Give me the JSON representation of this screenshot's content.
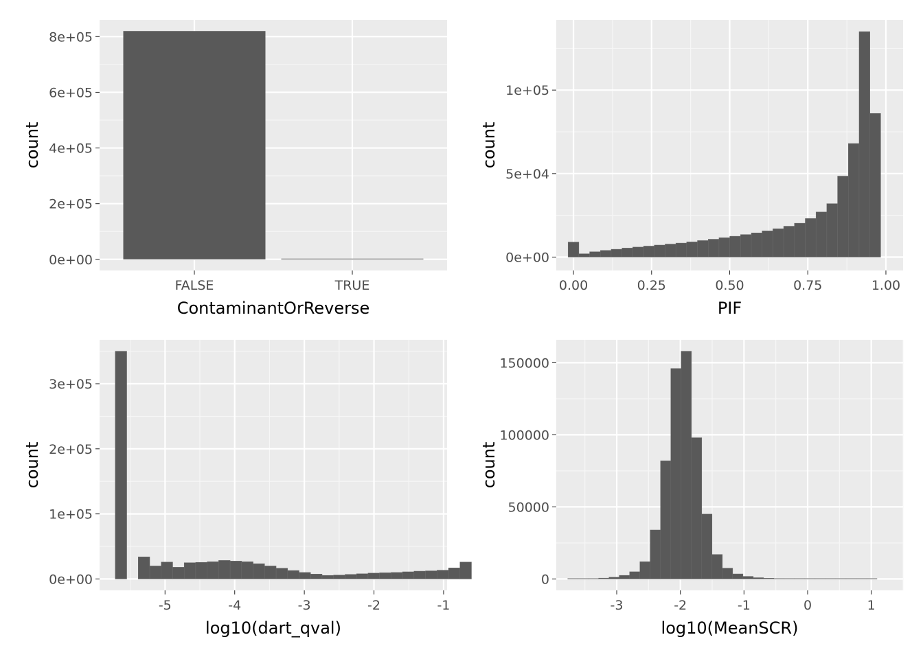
{
  "chart_data": [
    {
      "type": "bar",
      "xlabel": "ContaminantOrReverse",
      "ylabel": "count",
      "categories": [
        "FALSE",
        "TRUE"
      ],
      "values": [
        820000,
        1500
      ],
      "ylim": [
        -40000,
        860000
      ],
      "yticks": [
        0,
        200000,
        400000,
        600000,
        800000
      ],
      "ytick_labels": [
        "0e+00",
        "2e+05",
        "4e+05",
        "6e+05",
        "8e+05"
      ],
      "grid": true
    },
    {
      "type": "bar",
      "subtype": "histogram",
      "xlabel": "PIF",
      "ylabel": "count",
      "bins": {
        "start": -0.0172,
        "width": 0.0345
      },
      "values": [
        9000,
        2000,
        3200,
        4000,
        4700,
        5400,
        6000,
        6600,
        7200,
        7800,
        8400,
        9100,
        9900,
        10700,
        11600,
        12500,
        13500,
        14500,
        15700,
        17000,
        18500,
        20300,
        23100,
        27000,
        32000,
        48500,
        68000,
        135000,
        86000
      ],
      "xlim": [
        -0.055,
        1.055
      ],
      "ylim": [
        -8000,
        142000
      ],
      "xticks": [
        0,
        0.25,
        0.5,
        0.75,
        1
      ],
      "xtick_labels": [
        "0.00",
        "0.25",
        "0.50",
        "0.75",
        "1.00"
      ],
      "yticks": [
        0,
        50000,
        100000
      ],
      "ytick_labels": [
        "0e+00",
        "5e+04",
        "1e+05"
      ],
      "grid": true
    },
    {
      "type": "bar",
      "subtype": "histogram",
      "xlabel": "log10(dart_qval)",
      "ylabel": "count",
      "bins": {
        "start": -5.715,
        "width": 0.165
      },
      "values": [
        350000,
        0,
        34000,
        20000,
        26000,
        18000,
        25000,
        25500,
        26500,
        28500,
        27500,
        26500,
        23500,
        20000,
        16500,
        13000,
        10000,
        7500,
        5500,
        6000,
        7000,
        8000,
        9000,
        9500,
        10000,
        11000,
        12000,
        12500,
        13500,
        17000,
        26000
      ],
      "xlim": [
        -5.94,
        -0.95
      ],
      "ylim": [
        -17500,
        367500
      ],
      "xticks": [
        -5,
        -4,
        -3,
        -2,
        -1
      ],
      "xtick_labels": [
        "-5",
        "-4",
        "-3",
        "-2",
        "-1"
      ],
      "yticks": [
        0,
        100000,
        200000,
        300000
      ],
      "ytick_labels": [
        "0e+00",
        "1e+05",
        "2e+05",
        "3e+05"
      ],
      "grid": true
    },
    {
      "type": "bar",
      "subtype": "histogram",
      "xlabel": "log10(MeanSCR)",
      "ylabel": "count",
      "bins": {
        "start": -3.77,
        "width": 0.162
      },
      "values": [
        100,
        200,
        300,
        600,
        1200,
        2500,
        5000,
        12000,
        34000,
        82000,
        146000,
        158000,
        98000,
        45000,
        17000,
        7500,
        3500,
        1800,
        900,
        500,
        300,
        200,
        100,
        50,
        50,
        30,
        20,
        10,
        5,
        2
      ],
      "xlim": [
        -3.95,
        1.5
      ],
      "ylim": [
        -7900,
        165900
      ],
      "xticks": [
        -3,
        -2,
        -1,
        0,
        1
      ],
      "xtick_labels": [
        "-3",
        "-2",
        "-1",
        "0",
        "1"
      ],
      "yticks": [
        0,
        50000,
        100000,
        150000
      ],
      "ytick_labels": [
        "0",
        "50000",
        "100000",
        "150000"
      ],
      "grid": true
    }
  ]
}
